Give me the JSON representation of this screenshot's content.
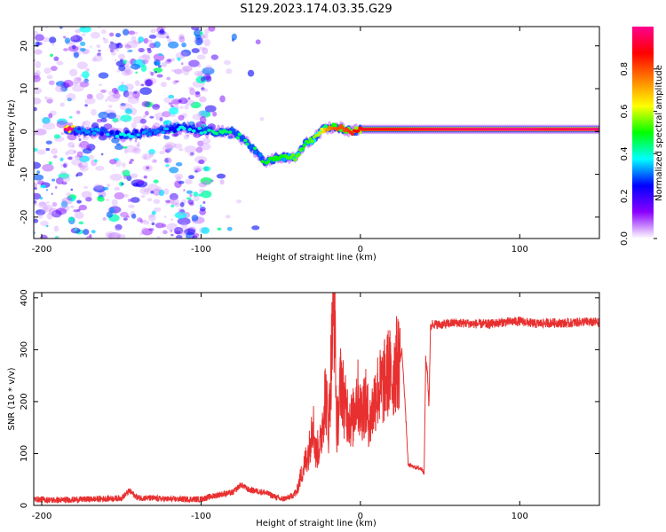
{
  "title": "S129.2023.174.03.35.G29",
  "chart_data": [
    {
      "type": "heatmap",
      "xlabel": "Height of straight line (km)",
      "ylabel": "Frequency (Hz)",
      "xlim": [
        -205,
        150
      ],
      "ylim": [
        -25,
        24.5
      ],
      "xticks": [
        -200,
        -100,
        0,
        100
      ],
      "yticks": [
        -20,
        -10,
        0,
        10,
        20
      ],
      "colorbar": {
        "label": "Normalized spectral amplitude",
        "range": [
          0,
          1
        ],
        "ticks": [
          "0.0",
          "0.2",
          "0.4",
          "0.6",
          "0.8"
        ],
        "colors": [
          "#ffffff",
          "#8a00ff",
          "#0000ff",
          "#00ffff",
          "#00ff00",
          "#ffff00",
          "#ff8000",
          "#ff0000",
          "#ff0090"
        ]
      },
      "ridge": {
        "x": [
          -180,
          -160,
          -150,
          -130,
          -110,
          -100,
          -90,
          -80,
          -70,
          -60,
          -50,
          -40,
          -35,
          -30,
          -25,
          -20,
          -15,
          -10,
          -5,
          0,
          20,
          50,
          80,
          100,
          120,
          150
        ],
        "frequency": [
          0,
          0,
          -1,
          0,
          1,
          0,
          0,
          0,
          -3,
          -7,
          -6,
          -6,
          -3,
          -2,
          0,
          1,
          1,
          0.5,
          0,
          0.5,
          0.5,
          0.5,
          0.5,
          0.5,
          0.5,
          0.5
        ],
        "amplitude": [
          0.3,
          0.35,
          0.4,
          0.3,
          0.4,
          0.4,
          0.45,
          0.45,
          0.45,
          0.5,
          0.5,
          0.55,
          0.5,
          0.55,
          0.6,
          0.75,
          0.8,
          0.8,
          0.85,
          0.9,
          0.9,
          0.95,
          0.98,
          1.0,
          0.95,
          0.98
        ]
      }
    },
    {
      "type": "line",
      "xlabel": "Height of straight line (km)",
      "ylabel": "SNR (10 * v/v)",
      "xlim": [
        -205,
        150
      ],
      "ylim": [
        0,
        410
      ],
      "xticks": [
        -200,
        -100,
        0,
        100
      ],
      "yticks": [
        0,
        100,
        200,
        300,
        400
      ],
      "color": "#e83030",
      "x": [
        -205,
        -190,
        -170,
        -150,
        -145,
        -140,
        -120,
        -100,
        -90,
        -80,
        -75,
        -70,
        -60,
        -50,
        -45,
        -40,
        -38,
        -35,
        -32,
        -30,
        -28,
        -25,
        -22,
        -20,
        -18,
        -16,
        -15,
        -14,
        -12,
        -10,
        -8,
        -5,
        -2,
        0,
        3,
        6,
        10,
        14,
        18,
        20,
        22,
        25,
        26,
        27,
        28,
        30,
        33,
        36,
        39,
        40,
        41,
        42,
        43,
        44,
        45,
        50,
        60,
        70,
        80,
        90,
        100,
        110,
        120,
        130,
        140,
        150
      ],
      "y": [
        12,
        10,
        12,
        14,
        28,
        15,
        12,
        12,
        20,
        25,
        40,
        30,
        25,
        12,
        15,
        25,
        50,
        80,
        110,
        170,
        100,
        120,
        220,
        150,
        300,
        410,
        140,
        170,
        250,
        190,
        180,
        160,
        220,
        180,
        200,
        160,
        220,
        230,
        260,
        240,
        270,
        280,
        300,
        250,
        200,
        78,
        75,
        72,
        70,
        60,
        280,
        260,
        190,
        340,
        350,
        348,
        352,
        350,
        349,
        353,
        355,
        350,
        352,
        351,
        354,
        352
      ]
    }
  ]
}
